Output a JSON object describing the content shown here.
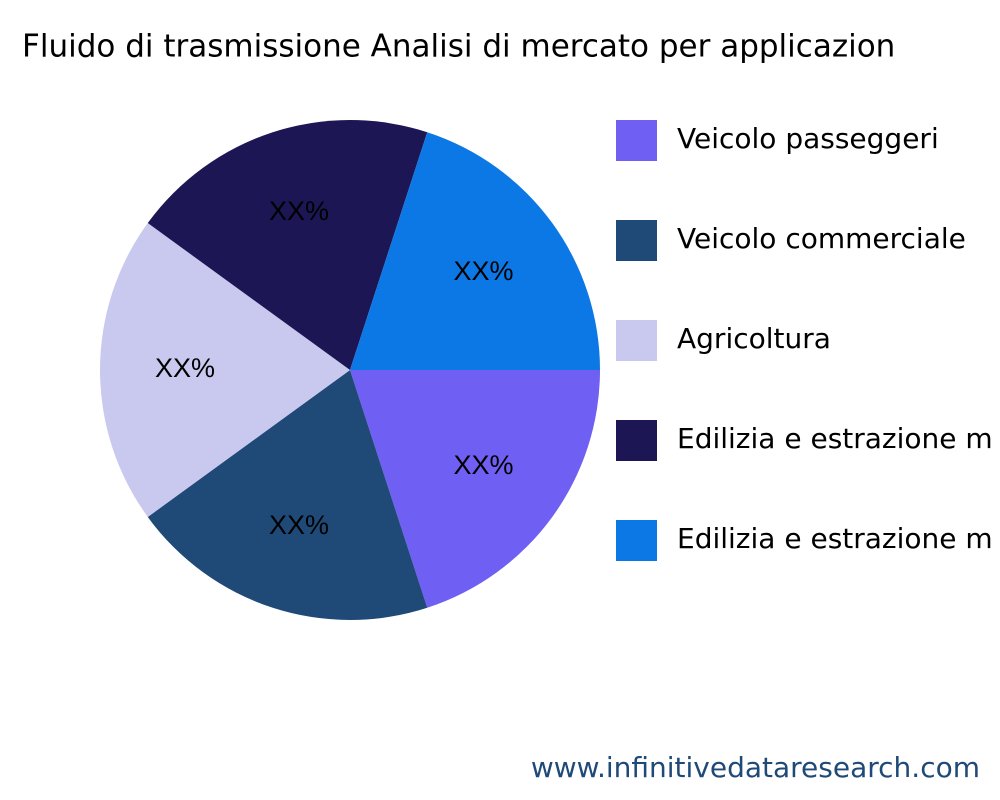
{
  "chart_data": {
    "type": "pie",
    "title": "Fluido di trasmissione Analisi di mercato per applicazion",
    "categories": [
      "Veicolo passeggeri",
      "Veicolo commerciale",
      "Agricoltura",
      "Edilizia e estrazione m",
      "Edilizia e estrazione m"
    ],
    "values": [
      20,
      20,
      20,
      20,
      20
    ],
    "value_labels": [
      "XX%",
      "XX%",
      "XX%",
      "XX%",
      "XX%"
    ],
    "colors": [
      "#6f5ff2",
      "#1f4a78",
      "#c9c9f0",
      "#1c1654",
      "#0b78e5"
    ],
    "source": "www.infinitivedataresearch.com"
  }
}
